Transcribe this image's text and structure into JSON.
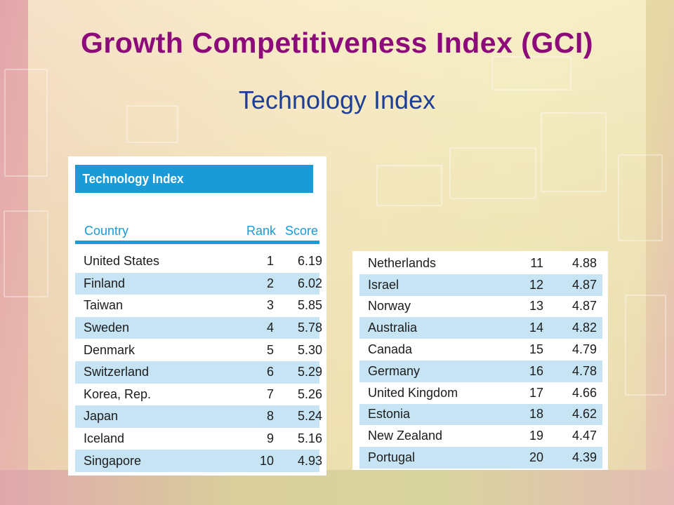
{
  "slide": {
    "title": "Growth Competitiveness Index (GCI)",
    "subtitle": "Technology Index"
  },
  "colors": {
    "title": "#8c0a7a",
    "subtitle": "#1f3f95",
    "accent_blue": "#1a9ad6",
    "row_shade": "#c6e4f3"
  },
  "table_left": {
    "heading": "Technology Index",
    "columns": [
      "Country",
      "Rank",
      "Score"
    ],
    "rows": [
      {
        "country": "United States",
        "rank": "1",
        "score": "6.19"
      },
      {
        "country": "Finland",
        "rank": "2",
        "score": "6.02"
      },
      {
        "country": "Taiwan",
        "rank": "3",
        "score": "5.85"
      },
      {
        "country": "Sweden",
        "rank": "4",
        "score": "5.78"
      },
      {
        "country": "Denmark",
        "rank": "5",
        "score": "5.30"
      },
      {
        "country": "Switzerland",
        "rank": "6",
        "score": "5.29"
      },
      {
        "country": "Korea, Rep.",
        "rank": "7",
        "score": "5.26"
      },
      {
        "country": "Japan",
        "rank": "8",
        "score": "5.24"
      },
      {
        "country": "Iceland",
        "rank": "9",
        "score": "5.16"
      },
      {
        "country": "Singapore",
        "rank": "10",
        "score": "4.93"
      }
    ]
  },
  "table_right": {
    "rows": [
      {
        "country": "Netherlands",
        "rank": "11",
        "score": "4.88"
      },
      {
        "country": "Israel",
        "rank": "12",
        "score": "4.87"
      },
      {
        "country": "Norway",
        "rank": "13",
        "score": "4.87"
      },
      {
        "country": "Australia",
        "rank": "14",
        "score": "4.82"
      },
      {
        "country": "Canada",
        "rank": "15",
        "score": "4.79"
      },
      {
        "country": "Germany",
        "rank": "16",
        "score": "4.78"
      },
      {
        "country": "United Kingdom",
        "rank": "17",
        "score": "4.66"
      },
      {
        "country": "Estonia",
        "rank": "18",
        "score": "4.62"
      },
      {
        "country": "New Zealand",
        "rank": "19",
        "score": "4.47"
      },
      {
        "country": "Portugal",
        "rank": "20",
        "score": "4.39"
      }
    ]
  }
}
